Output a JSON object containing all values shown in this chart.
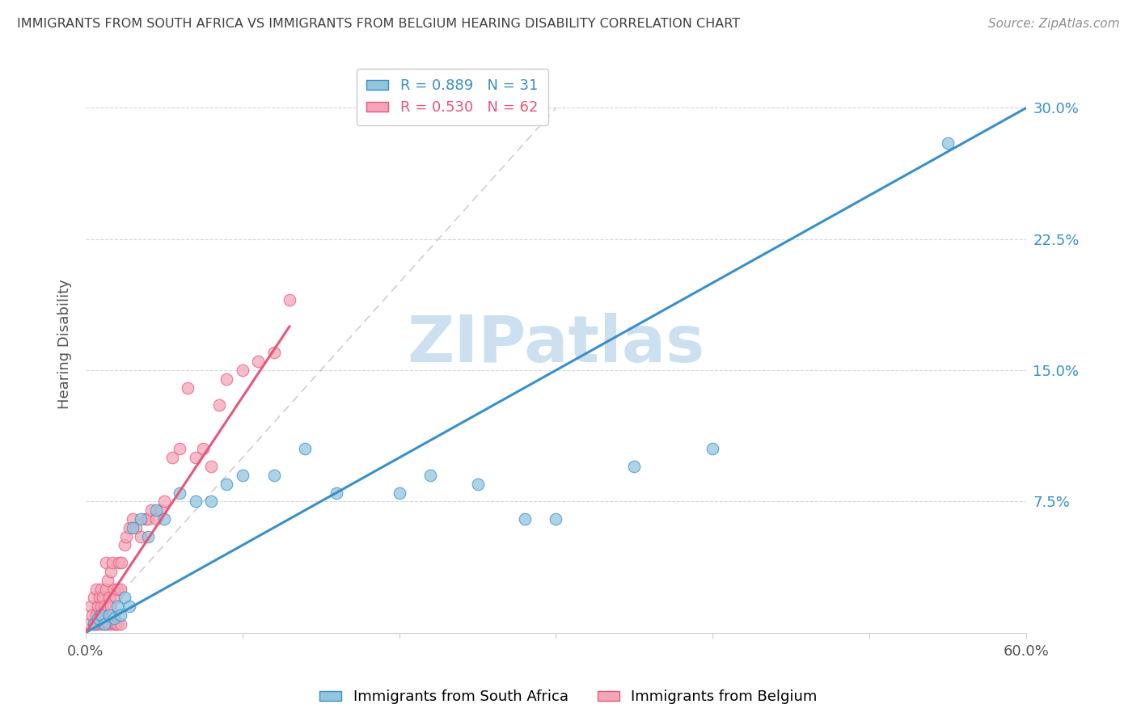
{
  "title": "IMMIGRANTS FROM SOUTH AFRICA VS IMMIGRANTS FROM BELGIUM HEARING DISABILITY CORRELATION CHART",
  "source": "Source: ZipAtlas.com",
  "ylabel": "Hearing Disability",
  "xlim": [
    0,
    0.6
  ],
  "ylim": [
    0,
    0.33
  ],
  "yticks_right": [
    0.075,
    0.15,
    0.225,
    0.3
  ],
  "ytick_labels_right": [
    "7.5%",
    "15.0%",
    "22.5%",
    "30.0%"
  ],
  "xticks": [
    0.0,
    0.1,
    0.2,
    0.3,
    0.4,
    0.5,
    0.6
  ],
  "xtick_labels": [
    "0.0%",
    "",
    "",
    "",
    "",
    "",
    "60.0%"
  ],
  "watermark": "ZIPatlas",
  "legend_r1": "R = 0.889",
  "legend_n1": "N = 31",
  "legend_r2": "R = 0.530",
  "legend_n2": "N = 62",
  "color_blue": "#92c5de",
  "color_pink": "#f4a6b8",
  "color_blue_line": "#3a8fc7",
  "color_pink_line": "#e8567a",
  "color_title": "#404040",
  "color_source": "#909090",
  "color_watermark": "#cce0f0",
  "south_africa_x": [
    0.005,
    0.008,
    0.01,
    0.012,
    0.015,
    0.018,
    0.02,
    0.022,
    0.025,
    0.028,
    0.03,
    0.035,
    0.04,
    0.045,
    0.05,
    0.06,
    0.07,
    0.08,
    0.09,
    0.1,
    0.12,
    0.14,
    0.16,
    0.2,
    0.22,
    0.25,
    0.28,
    0.3,
    0.35,
    0.4,
    0.55
  ],
  "south_africa_y": [
    0.005,
    0.008,
    0.01,
    0.005,
    0.01,
    0.008,
    0.015,
    0.01,
    0.02,
    0.015,
    0.06,
    0.065,
    0.055,
    0.07,
    0.065,
    0.08,
    0.075,
    0.075,
    0.085,
    0.09,
    0.09,
    0.105,
    0.08,
    0.08,
    0.09,
    0.085,
    0.065,
    0.065,
    0.095,
    0.105,
    0.28
  ],
  "belgium_x": [
    0.002,
    0.003,
    0.004,
    0.005,
    0.005,
    0.006,
    0.007,
    0.007,
    0.008,
    0.008,
    0.009,
    0.009,
    0.01,
    0.01,
    0.01,
    0.011,
    0.011,
    0.012,
    0.012,
    0.013,
    0.013,
    0.014,
    0.014,
    0.015,
    0.015,
    0.016,
    0.016,
    0.017,
    0.018,
    0.018,
    0.019,
    0.019,
    0.02,
    0.02,
    0.021,
    0.022,
    0.022,
    0.023,
    0.025,
    0.026,
    0.028,
    0.03,
    0.032,
    0.035,
    0.038,
    0.04,
    0.042,
    0.045,
    0.048,
    0.05,
    0.055,
    0.06,
    0.065,
    0.07,
    0.075,
    0.08,
    0.085,
    0.09,
    0.1,
    0.11,
    0.12,
    0.13
  ],
  "belgium_y": [
    0.005,
    0.015,
    0.01,
    0.005,
    0.02,
    0.005,
    0.01,
    0.025,
    0.005,
    0.015,
    0.01,
    0.02,
    0.005,
    0.015,
    0.025,
    0.01,
    0.02,
    0.005,
    0.015,
    0.025,
    0.04,
    0.005,
    0.03,
    0.005,
    0.02,
    0.035,
    0.015,
    0.04,
    0.005,
    0.025,
    0.005,
    0.02,
    0.005,
    0.025,
    0.04,
    0.005,
    0.025,
    0.04,
    0.05,
    0.055,
    0.06,
    0.065,
    0.06,
    0.055,
    0.065,
    0.065,
    0.07,
    0.065,
    0.07,
    0.075,
    0.1,
    0.105,
    0.14,
    0.1,
    0.105,
    0.095,
    0.13,
    0.145,
    0.15,
    0.155,
    0.16,
    0.19
  ],
  "sa_trendline_x": [
    0.0,
    0.6
  ],
  "sa_trendline_y": [
    0.0,
    0.3
  ],
  "be_trendline_x": [
    0.0,
    0.13
  ],
  "be_trendline_y": [
    0.0,
    0.175
  ]
}
